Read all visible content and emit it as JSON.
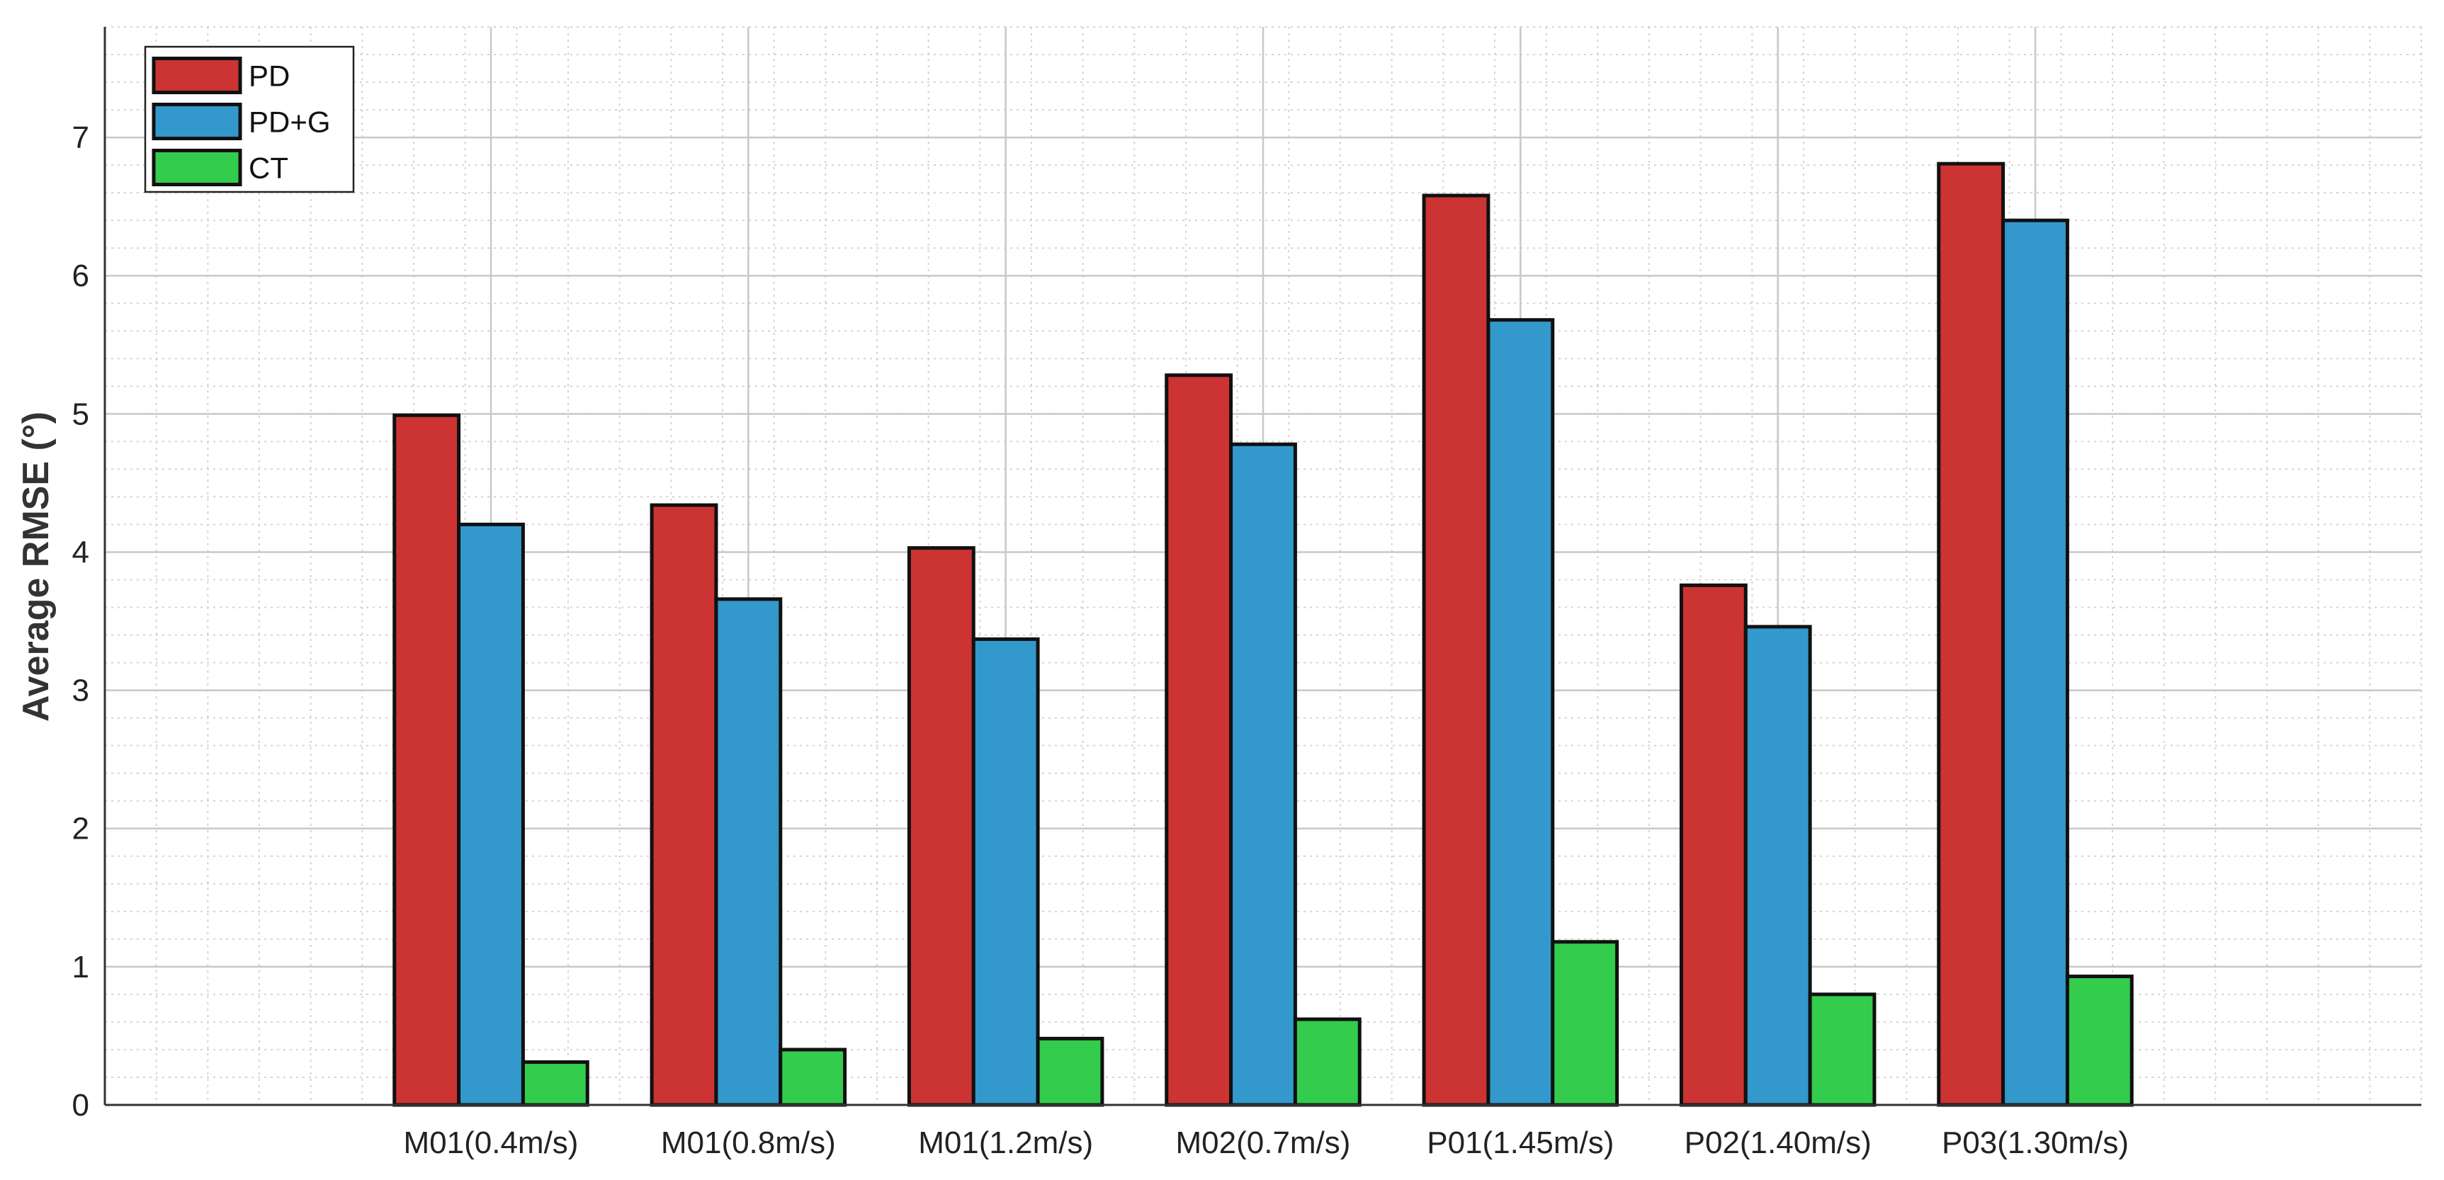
{
  "chart_data": {
    "type": "bar",
    "title": "",
    "xlabel": "",
    "ylabel": "Average RMSE (°)",
    "ylim": [
      0,
      7.8
    ],
    "yticks": [
      0,
      1,
      2,
      3,
      4,
      5,
      6,
      7
    ],
    "x_slot_range": [
      -0.5,
      8.5
    ],
    "grid": true,
    "minor_grid": true,
    "legend_position": "top-left",
    "categories": [
      "M01(0.4m/s)",
      "M01(0.8m/s)",
      "M01(1.2m/s)",
      "M02(0.7m/s)",
      "P01(1.45m/s)",
      "P02(1.40m/s)",
      "P03(1.30m/s)"
    ],
    "series": [
      {
        "name": "PD",
        "color": "#cc3333",
        "values": [
          4.99,
          4.34,
          4.03,
          5.28,
          6.58,
          3.76,
          6.81
        ]
      },
      {
        "name": "PD+G",
        "color": "#3399cc",
        "values": [
          4.2,
          3.66,
          3.37,
          4.78,
          5.68,
          3.46,
          6.4
        ]
      },
      {
        "name": "CT",
        "color": "#33cc4d",
        "values": [
          0.31,
          0.4,
          0.48,
          0.62,
          1.18,
          0.8,
          0.93
        ]
      }
    ]
  }
}
